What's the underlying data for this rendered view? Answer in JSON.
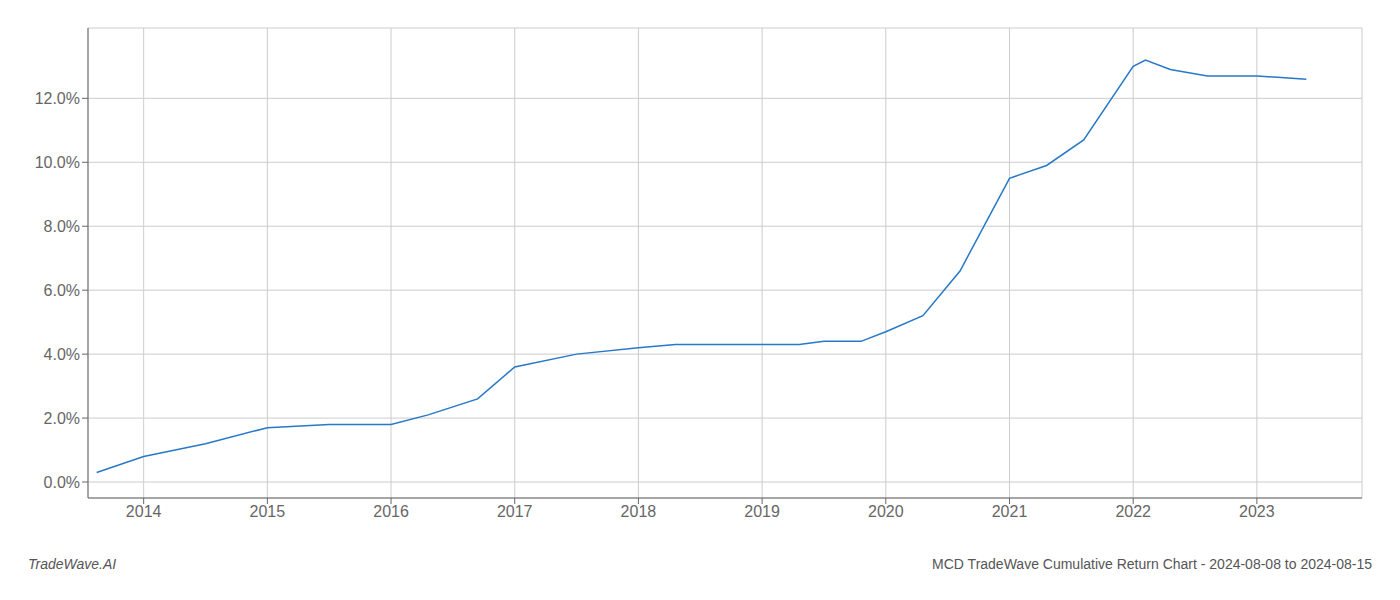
{
  "chart_data": {
    "type": "line",
    "title": "MCD TradeWave Cumulative Return Chart - 2024-08-08 to 2024-08-15",
    "annotations": [
      "TradeWave.AI"
    ],
    "x": [
      2013.62,
      2014.0,
      2014.5,
      2015.0,
      2015.5,
      2016.0,
      2016.3,
      2016.7,
      2017.0,
      2017.5,
      2018.0,
      2018.3,
      2018.6,
      2019.0,
      2019.3,
      2019.5,
      2019.8,
      2020.0,
      2020.3,
      2020.6,
      2021.0,
      2021.3,
      2021.6,
      2022.0,
      2022.1,
      2022.3,
      2022.6,
      2023.0,
      2023.4
    ],
    "values": [
      0.003,
      0.008,
      0.012,
      0.017,
      0.018,
      0.018,
      0.021,
      0.026,
      0.036,
      0.04,
      0.042,
      0.043,
      0.043,
      0.043,
      0.043,
      0.044,
      0.044,
      0.047,
      0.052,
      0.066,
      0.095,
      0.099,
      0.107,
      0.13,
      0.132,
      0.129,
      0.127,
      0.127,
      0.126
    ],
    "color": "#2878c8",
    "xlim": [
      2013.55,
      2023.85
    ],
    "xticks": [
      2014,
      2015,
      2016,
      2017,
      2018,
      2019,
      2020,
      2021,
      2022,
      2023
    ],
    "ylim": [
      -0.005,
      0.142
    ],
    "yticks": [
      {
        "value": 0.0,
        "label": "0.0%"
      },
      {
        "value": 0.02,
        "label": "2.0%"
      },
      {
        "value": 0.04,
        "label": "4.0%"
      },
      {
        "value": 0.06,
        "label": "6.0%"
      },
      {
        "value": 0.08,
        "label": "8.0%"
      },
      {
        "value": 0.1,
        "label": "10.0%"
      },
      {
        "value": 0.12,
        "label": "12.0%"
      }
    ],
    "grid": true
  }
}
